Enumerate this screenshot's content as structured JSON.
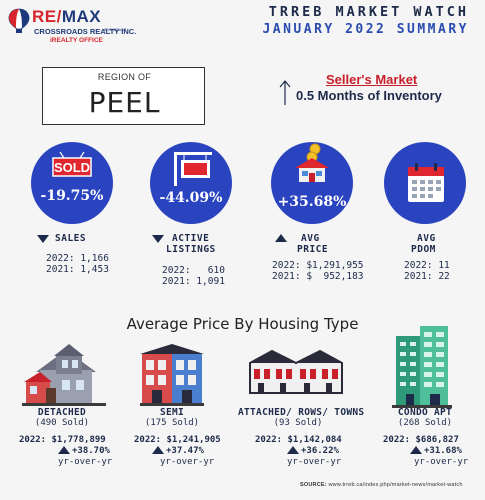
{
  "logo": {
    "brand_re": "RE",
    "brand_slash": "/",
    "brand_max": "MAX",
    "sub1": "CROSSROADS REALTY INC.",
    "sub2": "BROKERAGE",
    "sub3": "iREALTY OFFICE"
  },
  "header": {
    "title": "TRREB MARKET WATCH",
    "subtitle": "JANUARY 2022 SUMMARY"
  },
  "region": {
    "label": "REGION OF",
    "name": "PEEL"
  },
  "market": {
    "title": "Seller's Market",
    "inventory": "0.5 Months of Inventory"
  },
  "stats": [
    {
      "pct": "-19.75%",
      "icon": "sold-sign-icon",
      "direction": "down",
      "label1": "SALES",
      "label2": "",
      "line1": "2022: 1,166",
      "line2": "2021: 1,453"
    },
    {
      "pct": "-44.09%",
      "icon": "listing-sign-icon",
      "direction": "down",
      "label1": "ACTIVE",
      "label2": "LISTINGS",
      "line1": "2022:   610",
      "line2": "2021: 1,091"
    },
    {
      "pct": "+35.68%",
      "icon": "house-coins-icon",
      "direction": "up",
      "label1": "AVG",
      "label2": "PRICE",
      "line1": "2022: $1,291,955",
      "line2": "2021: $  952,183"
    },
    {
      "pct": "",
      "icon": "calendar-icon",
      "direction": "none",
      "label1": "AVG",
      "label2": "PDOM",
      "line1": "2022: 11",
      "line2": "2021: 22"
    }
  ],
  "section_title": "Average Price By Housing Type",
  "housing": [
    {
      "name": "DETACHED",
      "sold": "(490 Sold)",
      "price": "2022: $1,778,899",
      "change": "+38.70%",
      "yoy": "yr-over-yr",
      "icon": "detached-house-icon"
    },
    {
      "name": "SEMI",
      "sold": "(175 Sold)",
      "price": "2022: $1,241,905",
      "change": "+37.47%",
      "yoy": "yr-over-yr",
      "icon": "semi-house-icon"
    },
    {
      "name": "ATTACHED/ ROWS/ TOWNS",
      "sold": "(93 Sold)",
      "price": "2022: $1,142,084",
      "change": "+36.22%",
      "yoy": "yr-over-yr",
      "icon": "townhouse-icon"
    },
    {
      "name": "CONDO APT",
      "sold": "(268 Sold)",
      "price": "2022: $686,827",
      "change": "+31.68%",
      "yoy": "yr-over-yr",
      "icon": "condo-tower-icon"
    }
  ],
  "source": {
    "label": "SOURCE:",
    "url": "www.trreb.ca/index.php/market-news/market-watch"
  },
  "colors": {
    "circle": "#2a44c0",
    "accent_red": "#c8202a",
    "navy": "#1d2a4a"
  }
}
